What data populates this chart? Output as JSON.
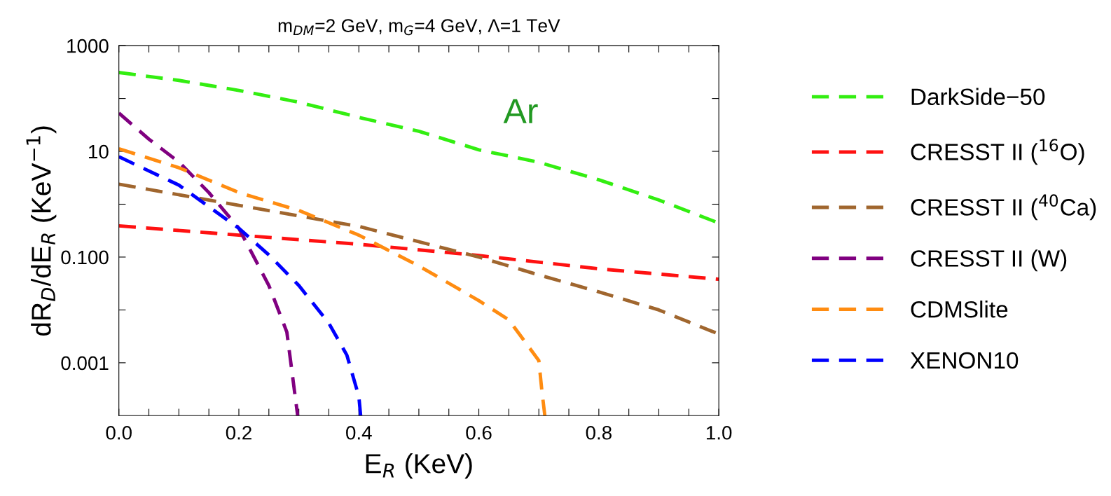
{
  "chart_data": {
    "type": "line",
    "title": "m$_{DM}$=2 GeV, m$_{G}$=4 GeV, Λ=1 TeV",
    "xlabel": "E$_{R}$ (KeV)",
    "ylabel": "dR$_{D}$/dE$_{R}$ (KeV$^{−1}$)",
    "log": "y",
    "xlim": [
      0,
      1
    ],
    "ylim": [
      0.0001,
      1000
    ],
    "xticks": [
      {
        "value": 0,
        "label": "0.0"
      },
      {
        "value": 0.05,
        "label": null
      },
      {
        "value": 0.1,
        "label": null
      },
      {
        "value": 0.15,
        "label": null
      },
      {
        "value": 0.2,
        "label": "0.2"
      },
      {
        "value": 0.25,
        "label": null
      },
      {
        "value": 0.3,
        "label": null
      },
      {
        "value": 0.35,
        "label": null
      },
      {
        "value": 0.4,
        "label": "0.4"
      },
      {
        "value": 0.45,
        "label": null
      },
      {
        "value": 0.5,
        "label": null
      },
      {
        "value": 0.55,
        "label": null
      },
      {
        "value": 0.6,
        "label": "0.6"
      },
      {
        "value": 0.65,
        "label": null
      },
      {
        "value": 0.7,
        "label": null
      },
      {
        "value": 0.75,
        "label": null
      },
      {
        "value": 0.8,
        "label": "0.8"
      },
      {
        "value": 0.85,
        "label": null
      },
      {
        "value": 0.9,
        "label": null
      },
      {
        "value": 0.95,
        "label": null
      },
      {
        "value": 1,
        "label": "1.0"
      }
    ],
    "yticks": [
      1000,
      {
        "value": 100,
        "label": null
      },
      10,
      {
        "value": 1,
        "label": null
      },
      {
        "value": 0.1,
        "label": "0.100"
      },
      {
        "value": 0.01,
        "label": null
      },
      {
        "value": 0.001,
        "label": "0.001"
      }
    ],
    "line_style": "dashed",
    "marker": "none",
    "grid": false,
    "legend": "right",
    "annotations": [
      "Ar"
    ],
    "series": [
      {
        "name": "DarkSide−50",
        "color": "#33ee11",
        "x": [
          0,
          0.1,
          0.2,
          0.3,
          0.4,
          0.5,
          0.6,
          0.7,
          0.8,
          0.9,
          1.0
        ],
        "values": [
          310,
          220,
          142,
          85,
          44,
          24,
          10.7,
          6.2,
          2.9,
          1.2,
          0.44
        ]
      },
      {
        "name": "CRESST II ($^{16}$O)",
        "color": "#ff1111",
        "x": [
          0,
          0.2,
          0.4,
          0.6,
          0.8,
          1.0
        ],
        "values": [
          0.39,
          0.26,
          0.175,
          0.107,
          0.06,
          0.038
        ]
      },
      {
        "name": "CRESST II ($^{40}$Ca)",
        "color": "#a0662e",
        "x": [
          0,
          0.2,
          0.4,
          0.6,
          0.7,
          0.8,
          0.9,
          1.0
        ],
        "values": [
          2.4,
          0.95,
          0.38,
          0.1,
          0.046,
          0.022,
          0.01,
          0.0035
        ]
      },
      {
        "name": "CRESST II (W)",
        "color": "#800080",
        "x": [
          0,
          0.05,
          0.1,
          0.15,
          0.2,
          0.25,
          0.28,
          0.298
        ],
        "values": [
          53,
          17,
          6.3,
          1.66,
          0.35,
          0.029,
          0.0038,
          0.0001
        ]
      },
      {
        "name": "CDMSlite",
        "color": "#ff8c11",
        "x": [
          0,
          0.1,
          0.2,
          0.3,
          0.4,
          0.5,
          0.6,
          0.65,
          0.7,
          0.705,
          0.71
        ],
        "values": [
          11.2,
          4.9,
          1.66,
          0.76,
          0.26,
          0.068,
          0.015,
          0.0065,
          0.0011,
          0.0003,
          0.0001
        ]
      },
      {
        "name": "XENON10",
        "color": "#0000ff",
        "x": [
          0,
          0.1,
          0.2,
          0.25,
          0.3,
          0.35,
          0.38,
          0.4,
          0.403
        ],
        "values": [
          7.9,
          2.3,
          0.35,
          0.11,
          0.029,
          0.0056,
          0.0014,
          0.00023,
          0.0001
        ]
      }
    ]
  }
}
